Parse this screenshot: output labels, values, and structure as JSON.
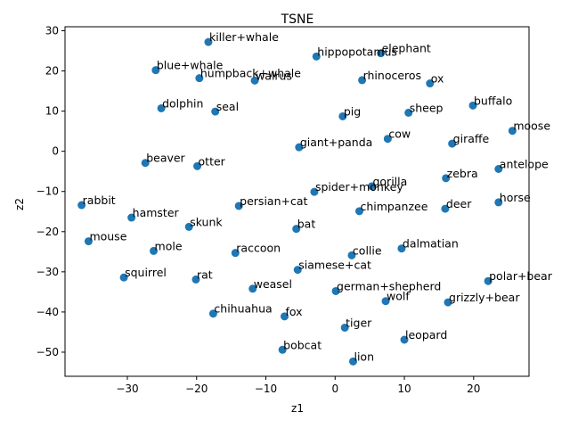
{
  "chart_data": {
    "type": "scatter",
    "title": "TSNE",
    "xlabel": "z1",
    "ylabel": "z2",
    "xlim": [
      -39,
      28
    ],
    "ylim": [
      -56,
      31
    ],
    "xticks": [
      -30,
      -20,
      -10,
      0,
      10,
      20
    ],
    "yticks": [
      -50,
      -40,
      -30,
      -20,
      -10,
      0,
      10,
      20,
      30
    ],
    "grid": false,
    "marker_color": "#1f77b4",
    "points": [
      {
        "label": "killer+whale",
        "x": -18.3,
        "y": 27.2
      },
      {
        "label": "hippopotamus",
        "x": -2.7,
        "y": 23.6
      },
      {
        "label": "elephant",
        "x": 6.6,
        "y": 24.4
      },
      {
        "label": "blue+whale",
        "x": -25.9,
        "y": 20.2
      },
      {
        "label": "humpback+whale",
        "x": -19.6,
        "y": 18.2
      },
      {
        "label": "walrus",
        "x": -11.6,
        "y": 17.6
      },
      {
        "label": "rhinoceros",
        "x": 3.9,
        "y": 17.7
      },
      {
        "label": "ox",
        "x": 13.7,
        "y": 16.9
      },
      {
        "label": "dolphin",
        "x": -25.1,
        "y": 10.7
      },
      {
        "label": "seal",
        "x": -17.3,
        "y": 9.9
      },
      {
        "label": "pig",
        "x": 1.1,
        "y": 8.7
      },
      {
        "label": "sheep",
        "x": 10.6,
        "y": 9.6
      },
      {
        "label": "buffalo",
        "x": 19.9,
        "y": 11.4
      },
      {
        "label": "moose",
        "x": 25.6,
        "y": 5.1
      },
      {
        "label": "cow",
        "x": 7.6,
        "y": 3.1
      },
      {
        "label": "giraffe",
        "x": 16.9,
        "y": 1.9
      },
      {
        "label": "giant+panda",
        "x": -5.2,
        "y": 1.0
      },
      {
        "label": "beaver",
        "x": -27.4,
        "y": -2.9
      },
      {
        "label": "otter",
        "x": -19.9,
        "y": -3.7
      },
      {
        "label": "antelope",
        "x": 23.6,
        "y": -4.4
      },
      {
        "label": "zebra",
        "x": 16.0,
        "y": -6.7
      },
      {
        "label": "gorilla",
        "x": 5.3,
        "y": -8.7
      },
      {
        "label": "spider+monkey",
        "x": -3.0,
        "y": -10.1
      },
      {
        "label": "rabbit",
        "x": -36.6,
        "y": -13.4
      },
      {
        "label": "persian+cat",
        "x": -13.9,
        "y": -13.6
      },
      {
        "label": "chimpanzee",
        "x": 3.5,
        "y": -14.9
      },
      {
        "label": "deer",
        "x": 15.9,
        "y": -14.3
      },
      {
        "label": "horse",
        "x": 23.6,
        "y": -12.7
      },
      {
        "label": "hamster",
        "x": -29.4,
        "y": -16.5
      },
      {
        "label": "skunk",
        "x": -21.1,
        "y": -18.8
      },
      {
        "label": "bat",
        "x": -5.6,
        "y": -19.3
      },
      {
        "label": "mouse",
        "x": -35.6,
        "y": -22.4
      },
      {
        "label": "mole",
        "x": -26.2,
        "y": -24.8
      },
      {
        "label": "raccoon",
        "x": -14.4,
        "y": -25.3
      },
      {
        "label": "dalmatian",
        "x": 9.6,
        "y": -24.2
      },
      {
        "label": "collie",
        "x": 2.4,
        "y": -25.9
      },
      {
        "label": "siamese+cat",
        "x": -5.4,
        "y": -29.5
      },
      {
        "label": "squirrel",
        "x": -30.5,
        "y": -31.4
      },
      {
        "label": "rat",
        "x": -20.1,
        "y": -31.9
      },
      {
        "label": "polar+bear",
        "x": 22.1,
        "y": -32.3
      },
      {
        "label": "weasel",
        "x": -11.9,
        "y": -34.2
      },
      {
        "label": "german+shepherd",
        "x": 0.1,
        "y": -34.8
      },
      {
        "label": "wolf",
        "x": 7.3,
        "y": -37.3
      },
      {
        "label": "grizzly+bear",
        "x": 16.3,
        "y": -37.6
      },
      {
        "label": "chihuahua",
        "x": -17.6,
        "y": -40.4
      },
      {
        "label": "fox",
        "x": -7.3,
        "y": -41.1
      },
      {
        "label": "tiger",
        "x": 1.4,
        "y": -43.9
      },
      {
        "label": "leopard",
        "x": 10.0,
        "y": -46.9
      },
      {
        "label": "bobcat",
        "x": -7.6,
        "y": -49.4
      },
      {
        "label": "lion",
        "x": 2.6,
        "y": -52.3
      }
    ]
  }
}
